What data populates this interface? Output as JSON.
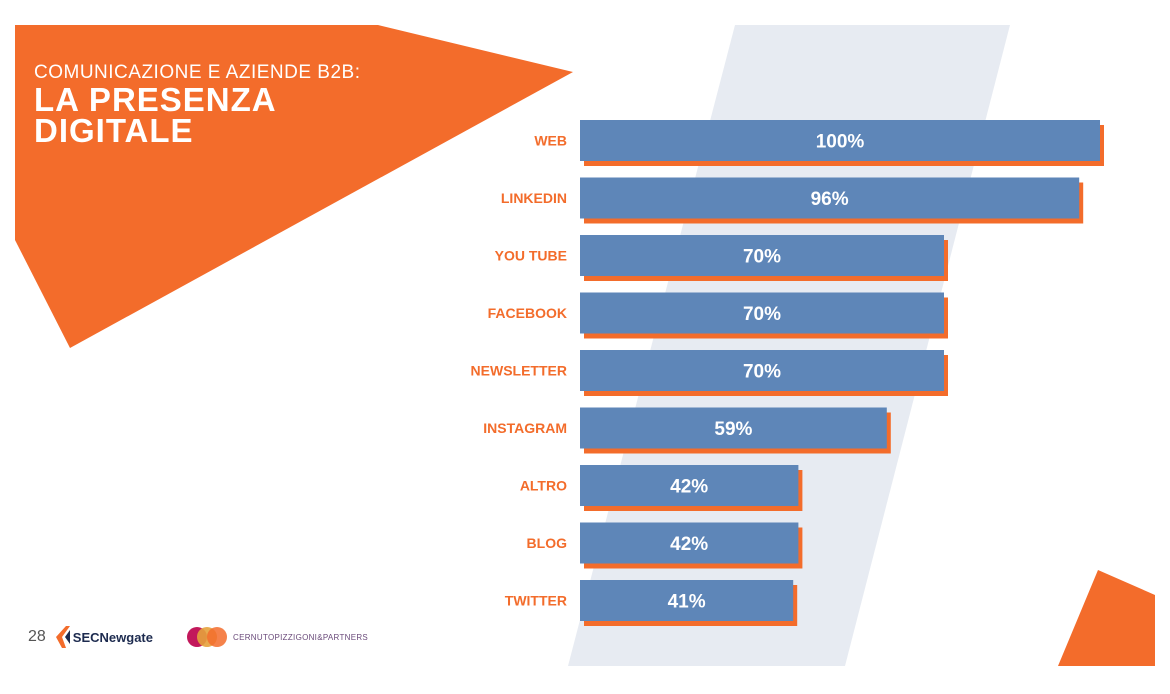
{
  "title": {
    "subtitle": "COMUNICAZIONE E AZIENDE B2B:",
    "line1": "LA PRESENZA",
    "line2": "DIGITALE"
  },
  "footer": {
    "page_number": "28",
    "logo1_text": "SECNewgate",
    "logo2_text": "CERNUTOPIZZIGONI&PARTNERS"
  },
  "colors": {
    "accent": "#f36c2b",
    "bar": "#5e86b8",
    "stripe": "#e7ebf2"
  },
  "chart_data": {
    "type": "bar",
    "orientation": "horizontal",
    "categories": [
      "WEB",
      "LINKEDIN",
      "YOU TUBE",
      "FACEBOOK",
      "NEWSLETTER",
      "INSTAGRAM",
      "ALTRO",
      "BLOG",
      "TWITTER"
    ],
    "values": [
      100,
      96,
      70,
      70,
      70,
      59,
      42,
      42,
      41
    ],
    "value_labels": [
      "100%",
      "96%",
      "70%",
      "70%",
      "70%",
      "59%",
      "42%",
      "42%",
      "41%"
    ],
    "xlim": [
      0,
      100
    ],
    "title": "",
    "xlabel": "",
    "ylabel": "",
    "grid": false,
    "legend": "none"
  }
}
